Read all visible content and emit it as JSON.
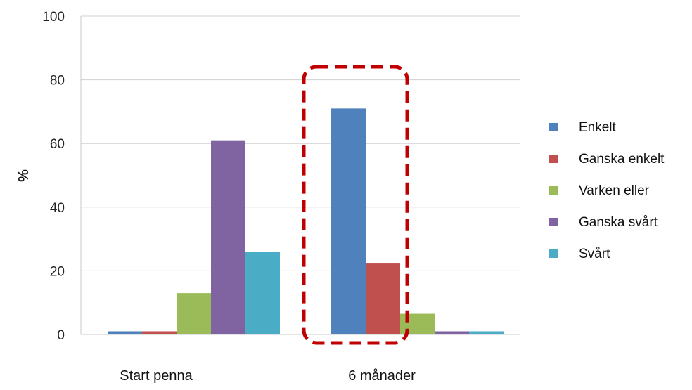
{
  "chart_data": {
    "type": "bar",
    "title": "",
    "xlabel": "",
    "ylabel": "%",
    "ylim": [
      0,
      100
    ],
    "yticks": [
      0,
      20,
      40,
      60,
      80,
      100
    ],
    "grid": true,
    "legend_position": "right",
    "categories": [
      "Start penna",
      "6 månader"
    ],
    "series": [
      {
        "name": "Enkelt",
        "color": "#4F81BD",
        "values": [
          1,
          71
        ]
      },
      {
        "name": "Ganska enkelt",
        "color": "#C0504D",
        "values": [
          1,
          22.5
        ]
      },
      {
        "name": "Varken eller",
        "color": "#9BBB59",
        "values": [
          13,
          6.5
        ]
      },
      {
        "name": "Ganska svårt",
        "color": "#8064A2",
        "values": [
          61,
          1
        ]
      },
      {
        "name": "Svårt",
        "color": "#4BACC6",
        "values": [
          26,
          1
        ]
      }
    ],
    "highlight": {
      "category_index": 1,
      "style": "dashed-rounded-box",
      "color": "#C00000"
    }
  }
}
